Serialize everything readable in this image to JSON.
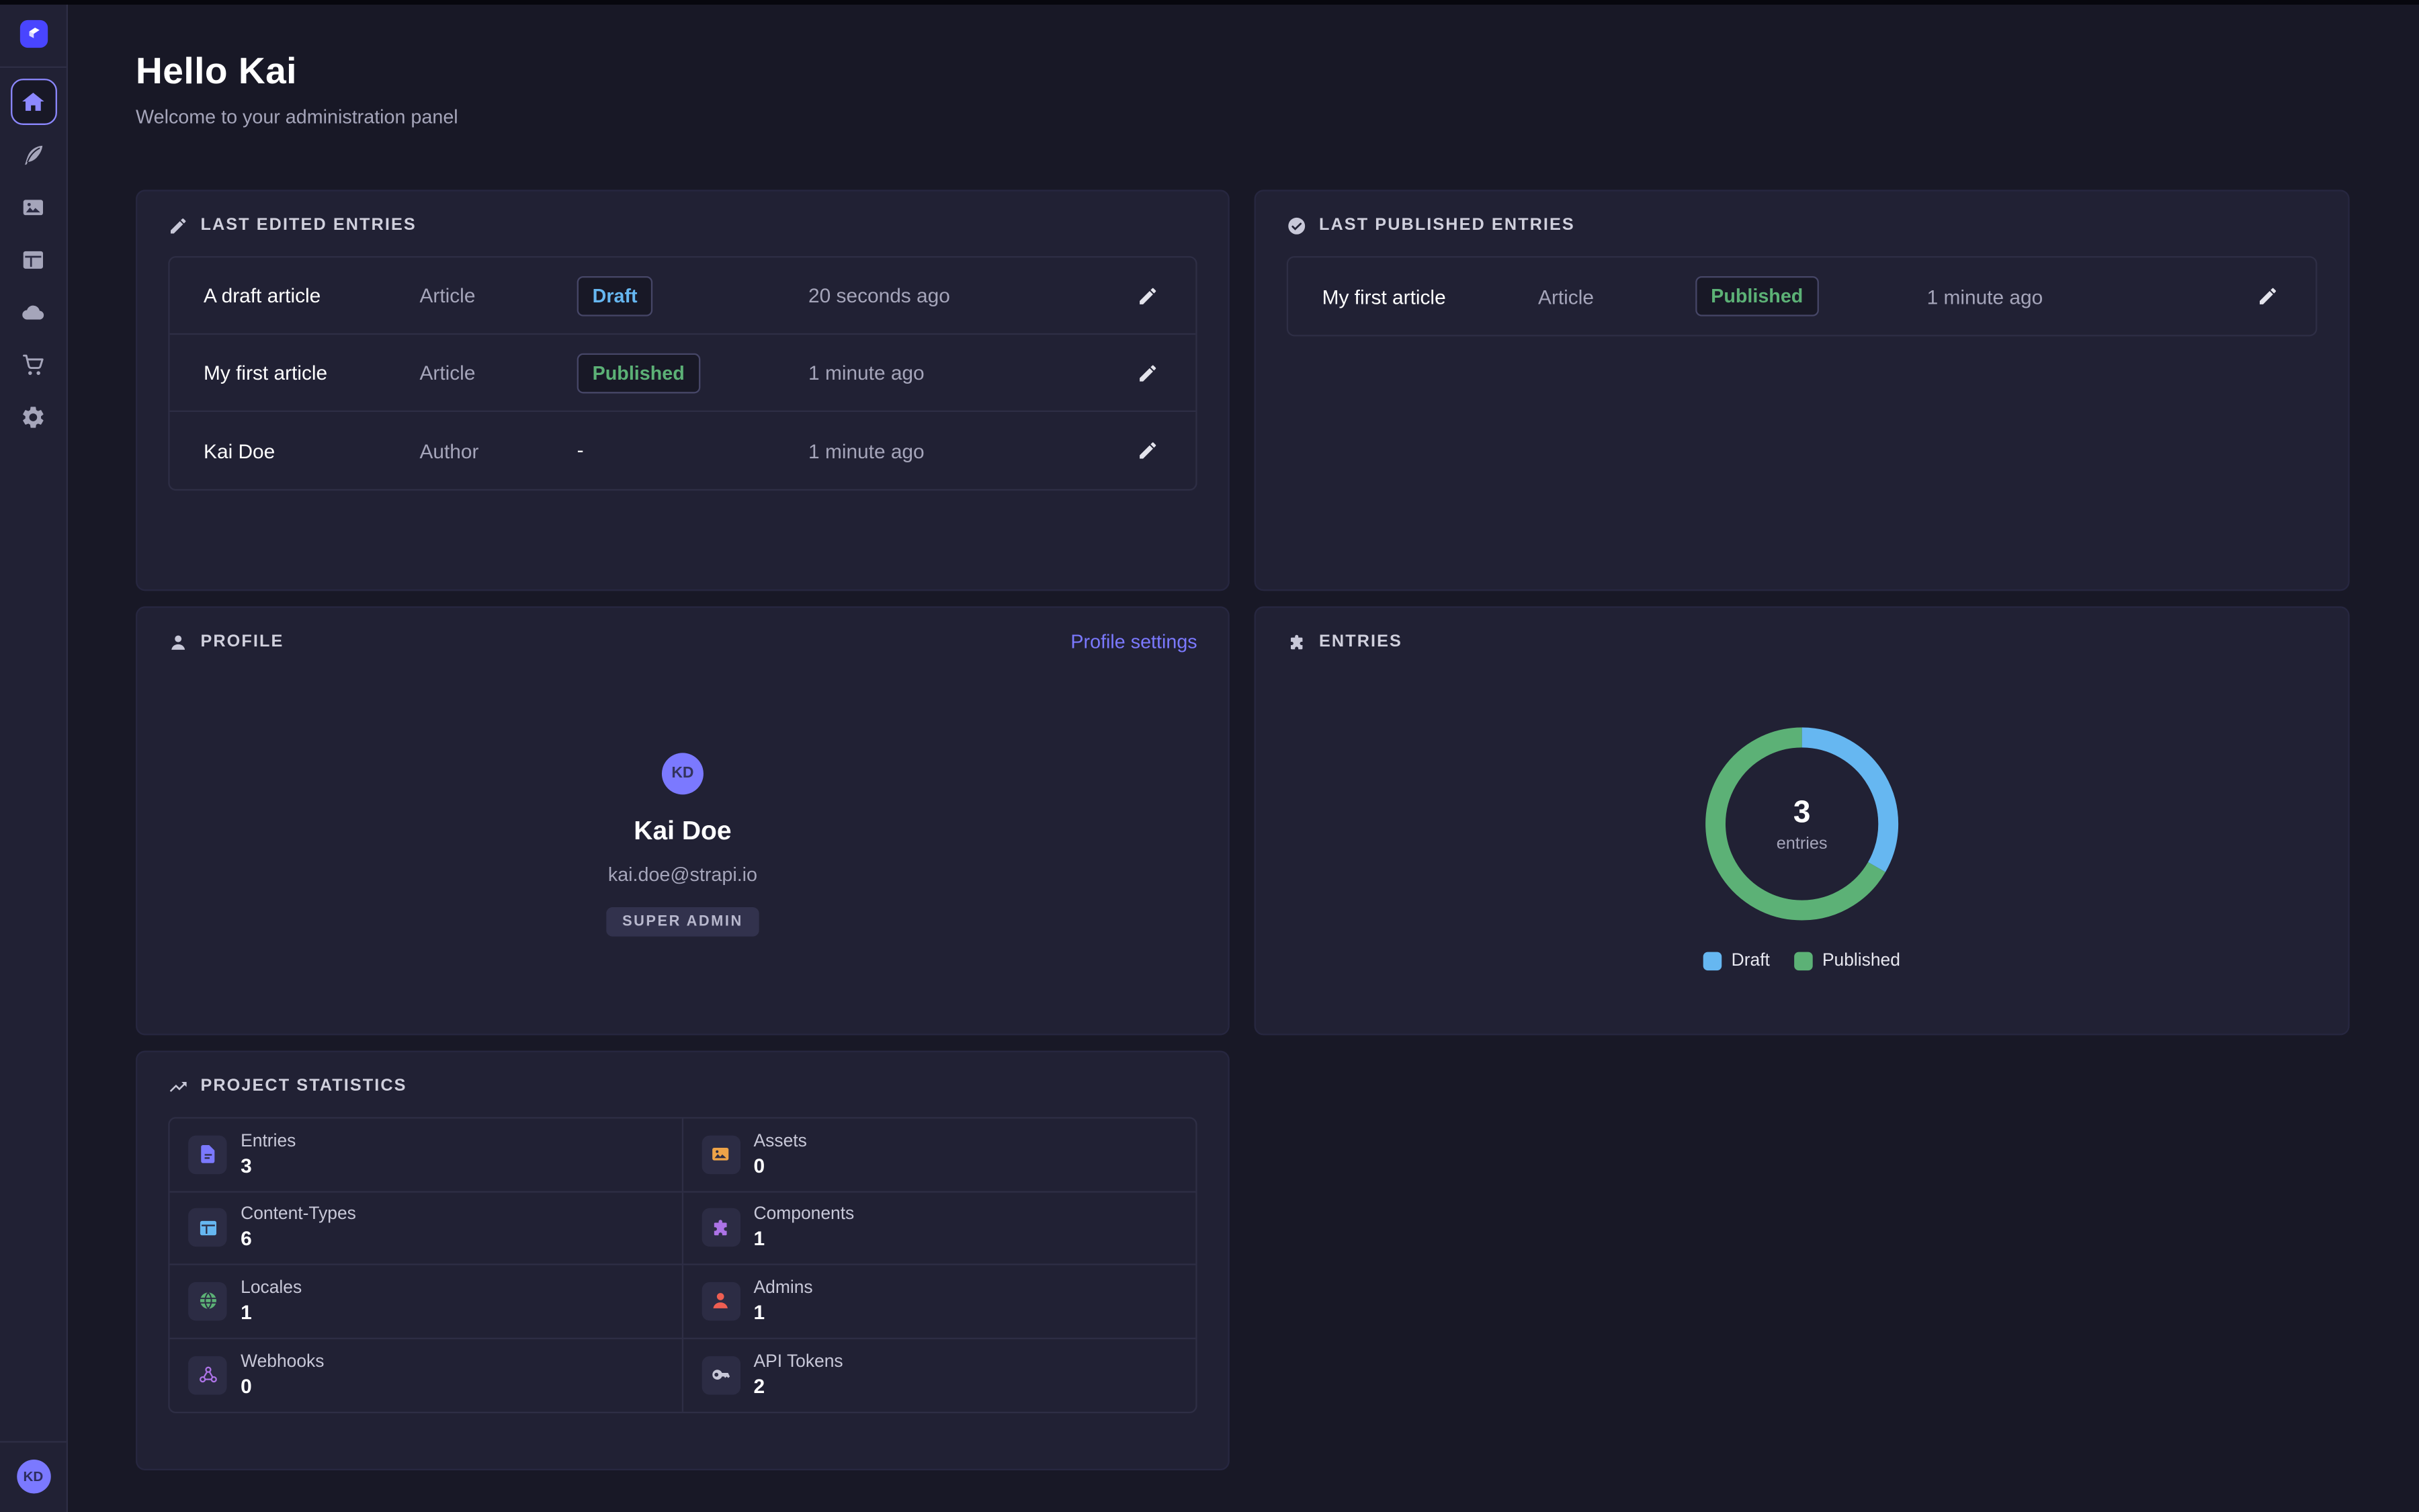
{
  "sidebar": {
    "items": [
      {
        "id": "home",
        "icon": "home",
        "active": true
      },
      {
        "id": "content-manager",
        "icon": "feather",
        "active": false
      },
      {
        "id": "media-library",
        "icon": "images",
        "active": false
      },
      {
        "id": "content-type-builder",
        "icon": "layout",
        "active": false
      },
      {
        "id": "deploy",
        "icon": "cloud",
        "active": false
      },
      {
        "id": "marketplace",
        "icon": "cart",
        "active": false
      },
      {
        "id": "settings",
        "icon": "gear",
        "active": false
      }
    ],
    "user_initials": "KD"
  },
  "header": {
    "title": "Hello Kai",
    "subtitle": "Welcome to your administration panel"
  },
  "last_edited": {
    "title": "LAST EDITED ENTRIES",
    "rows": [
      {
        "name": "A draft article",
        "kind": "Article",
        "status": "Draft",
        "status_color": "#66b7f1",
        "time": "20 seconds ago"
      },
      {
        "name": "My first article",
        "kind": "Article",
        "status": "Published",
        "status_color": "#5cb176",
        "time": "1 minute ago"
      },
      {
        "name": "Kai Doe",
        "kind": "Author",
        "status": "-",
        "status_color": null,
        "time": "1 minute ago"
      }
    ]
  },
  "last_published": {
    "title": "LAST PUBLISHED ENTRIES",
    "rows": [
      {
        "name": "My first article",
        "kind": "Article",
        "status": "Published",
        "status_color": "#5cb176",
        "time": "1 minute ago"
      }
    ]
  },
  "profile": {
    "title": "PROFILE",
    "settings_link": "Profile settings",
    "initials": "KD",
    "name": "Kai Doe",
    "email": "kai.doe@strapi.io",
    "role": "SUPER ADMIN"
  },
  "entries_card": {
    "title": "ENTRIES"
  },
  "stats": {
    "title": "PROJECT STATISTICS",
    "items": [
      {
        "label": "Entries",
        "value": "3",
        "icon": "document",
        "color": "#7b79ff"
      },
      {
        "label": "Assets",
        "value": "0",
        "icon": "images",
        "color": "#eda348"
      },
      {
        "label": "Content-Types",
        "value": "6",
        "icon": "layout",
        "color": "#66b7f1"
      },
      {
        "label": "Components",
        "value": "1",
        "icon": "puzzle",
        "color": "#ac73e6"
      },
      {
        "label": "Locales",
        "value": "1",
        "icon": "globe",
        "color": "#5cb176"
      },
      {
        "label": "Admins",
        "value": "1",
        "icon": "person",
        "color": "#ee5e52"
      },
      {
        "label": "Webhooks",
        "value": "0",
        "icon": "webhook",
        "color": "#ac73e6"
      },
      {
        "label": "API Tokens",
        "value": "2",
        "icon": "key",
        "color": "#c8c8d8"
      }
    ]
  },
  "chart_data": {
    "type": "donut",
    "title": "Entries",
    "series": [
      {
        "name": "Draft",
        "value": 1,
        "color": "#66b7f1"
      },
      {
        "name": "Published",
        "value": 2,
        "color": "#5cb176"
      }
    ],
    "total": 3,
    "center_value": "3",
    "center_label": "entries",
    "legend_position": "bottom",
    "start_angle_deg": 0,
    "direction": "clockwise"
  },
  "colors": {
    "page_bg": "#181826",
    "card_bg": "#212134",
    "border": "#2e2e45",
    "primary": "#4945ff",
    "primary_light": "#7b79ff",
    "draft_blue": "#66b7f1",
    "published_green": "#5cb176",
    "text_muted": "#a5a5ba"
  }
}
